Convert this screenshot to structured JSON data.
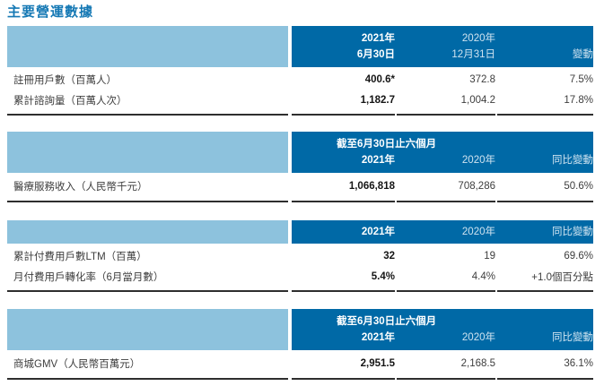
{
  "page_title": "主要營運數據",
  "colors": {
    "title_blue": "#1478b4",
    "light_band": "#8dc2dd",
    "dark_band": "#0069a6",
    "rule": "#2e2e2e"
  },
  "sections": [
    {
      "header": {
        "span": null,
        "line1": [
          "2021年",
          "2020年",
          ""
        ],
        "line2": [
          "6月30日",
          "12月31日",
          "變動"
        ]
      },
      "rows": [
        {
          "label": "註冊用戶數（百萬人）",
          "values": [
            "400.6*",
            "372.8",
            "7.5%"
          ]
        },
        {
          "label": "累計諮詢量（百萬人次）",
          "values": [
            "1,182.7",
            "1,004.2",
            "17.8%"
          ]
        }
      ]
    },
    {
      "header": {
        "span": "截至6月30日止六個月",
        "cols": [
          "2021年",
          "2020年",
          "同比變動"
        ]
      },
      "rows": [
        {
          "label": "醫療服務收入（人民幣千元）",
          "values": [
            "1,066,818",
            "708,286",
            "50.6%"
          ]
        }
      ]
    },
    {
      "header": {
        "span": null,
        "cols": [
          "2021年",
          "2020年",
          "同比變動"
        ]
      },
      "rows": [
        {
          "label": "累計付費用戶數LTM（百萬）",
          "values": [
            "32",
            "19",
            "69.6%"
          ]
        },
        {
          "label": "月付費用戶轉化率（6月當月數）",
          "values": [
            "5.4%",
            "4.4%",
            "+1.0個百分點"
          ]
        }
      ]
    },
    {
      "header": {
        "span": "截至6月30日止六個月",
        "cols": [
          "2021年",
          "2020年",
          "同比變動"
        ]
      },
      "rows": [
        {
          "label": "商城GMV（人民幣百萬元）",
          "values": [
            "2,951.5",
            "2,168.5",
            "36.1%"
          ]
        }
      ]
    }
  ]
}
